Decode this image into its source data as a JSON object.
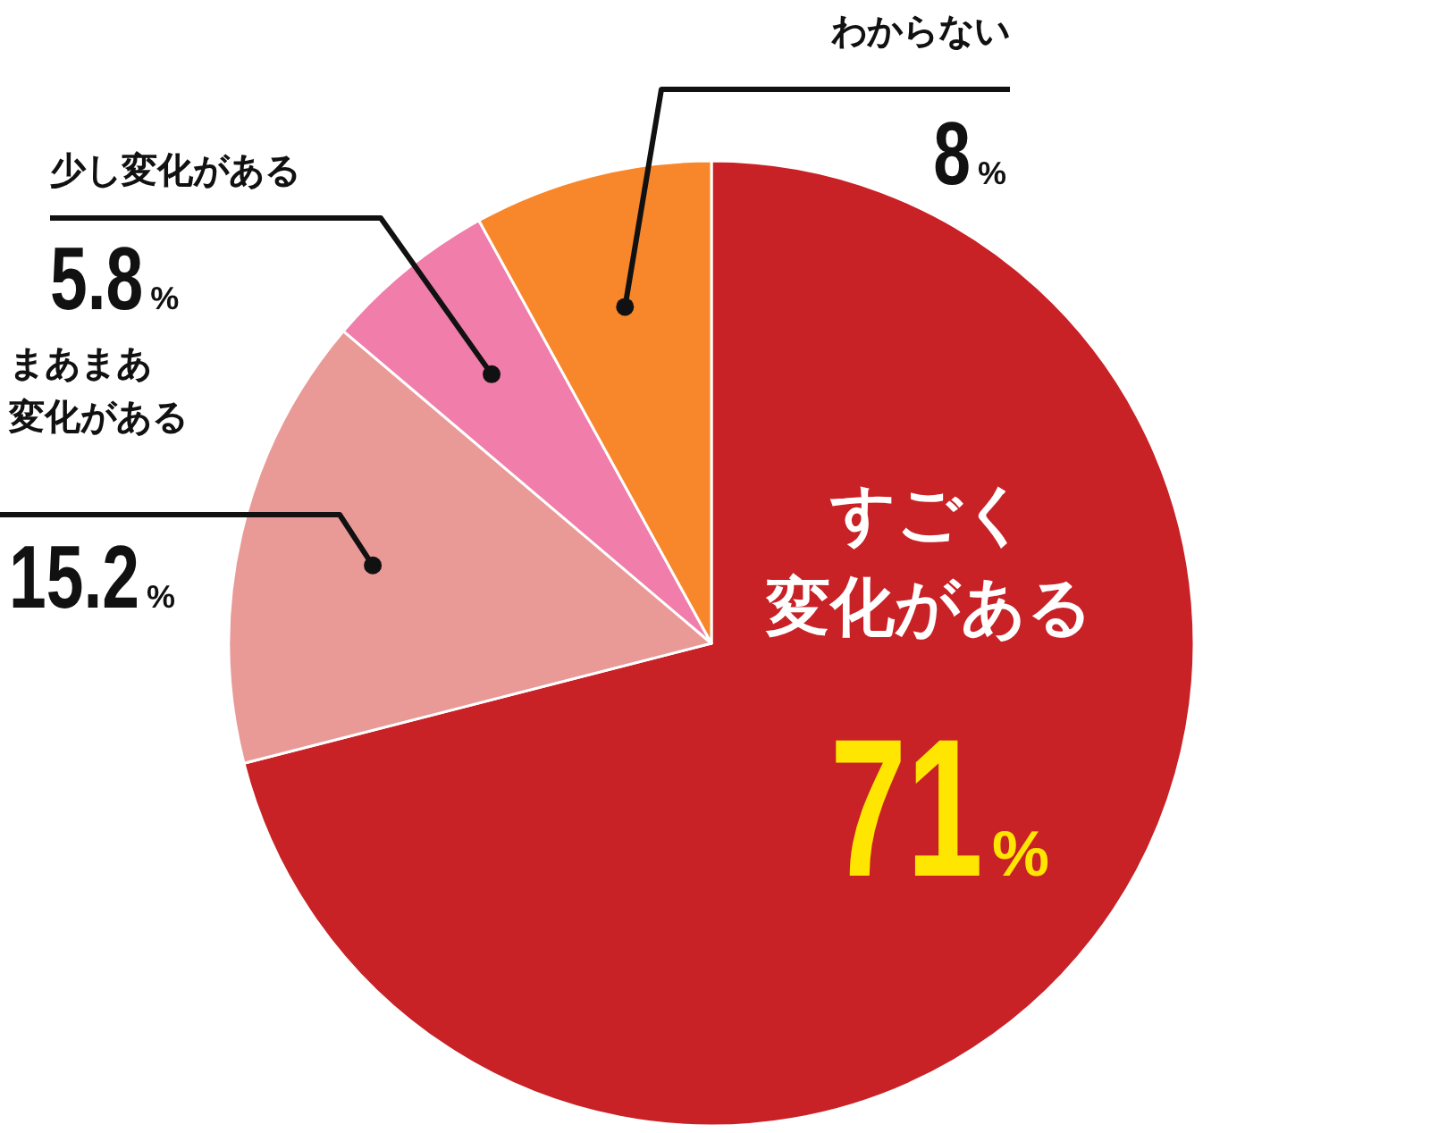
{
  "chart_data": {
    "type": "pie",
    "categories": [
      "すごく変化がある",
      "まあまあ変化がある",
      "少し変化がある",
      "わからない"
    ],
    "values": [
      71,
      15.2,
      5.8,
      8
    ],
    "colors": [
      "#c82126",
      "#e99a97",
      "#f07daa",
      "#f8862a"
    ],
    "value_labels": [
      "71%",
      "15.2%",
      "5.8%",
      "8%"
    ]
  }
}
